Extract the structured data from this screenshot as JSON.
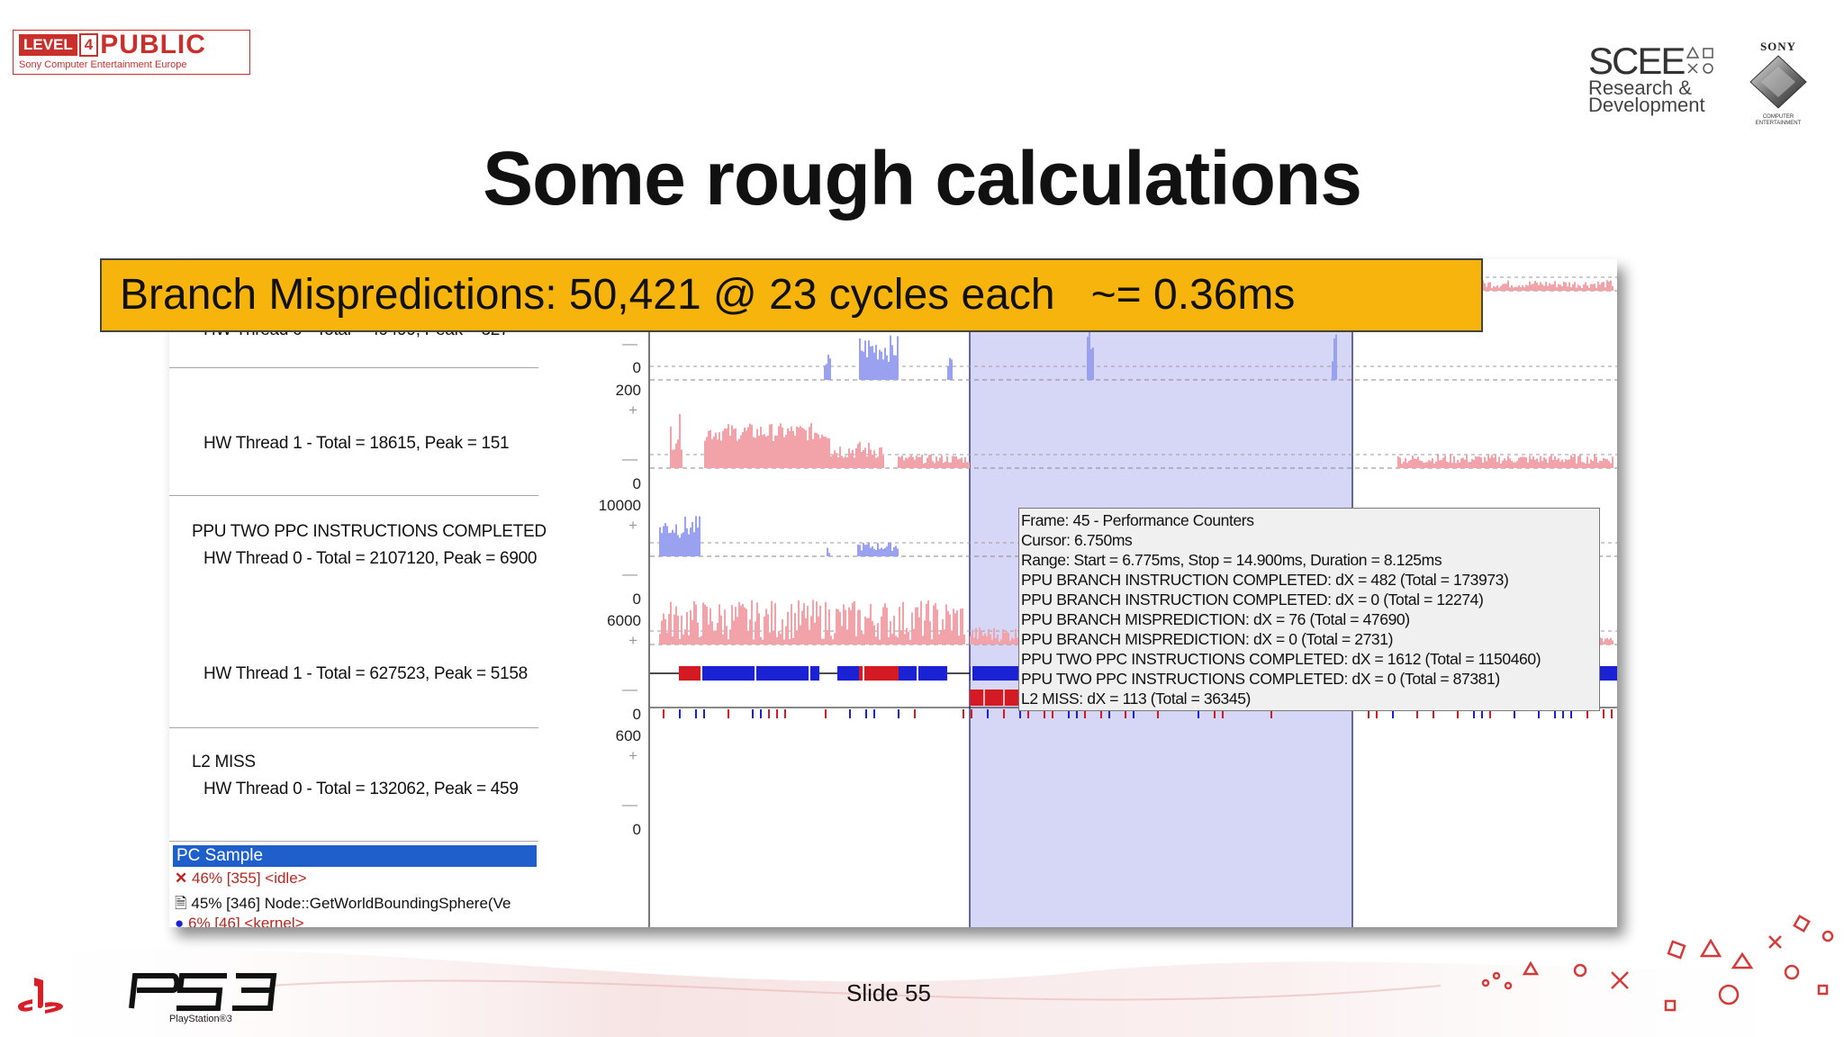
{
  "slide": {
    "title": "Some rough calculations",
    "slide_label": "Slide 55"
  },
  "logos": {
    "level4_box": "LEVEL",
    "level4_num": "4",
    "level4_public": "PUBLIC",
    "level4_sub": "Sony Computer Entertainment Europe",
    "scee_big": "SCEE",
    "scee_line1": "Research &",
    "scee_line2": "Development",
    "sony": "SONY",
    "sony_sub": "COMPUTER ENTERTAINMENT",
    "ps3_text": "PS3",
    "ps3_sub": "PlayStation®3"
  },
  "banner": {
    "text": "Branch Mispredictions: 50,421 @ 23 cycles each   ~= 0.36ms"
  },
  "profiler": {
    "left_labels": {
      "row0": "HW Thread 0 - Total = 49499, Peak = 327",
      "row1": "HW Thread 1 - Total = 18615, Peak = 151",
      "row2_title": "PPU TWO PPC INSTRUCTIONS COMPLETED",
      "row2": "HW Thread 0 - Total = 2107120, Peak = 6900",
      "row3": "HW Thread 1 - Total = 627523, Peak = 5158",
      "row4_title": "L2 MISS",
      "row4": "HW Thread 0 - Total = 132062, Peak = 459"
    },
    "axis": {
      "r0_zero": "0",
      "r1_max": "200",
      "r1_zero": "0",
      "r2_max": "10000",
      "r2_zero": "0",
      "r3_max": "6000",
      "r3_zero": "0",
      "r4_max": "600",
      "r4_zero": "0"
    },
    "pc_sample": {
      "header": "PC Sample",
      "row1": "46% [355] <idle>",
      "row2": "45% [346] Node::GetWorldBoundingSphere(Ve",
      "row3": "6% [46] <kernel>"
    },
    "tooltip": [
      "Frame: 45 - Performance Counters",
      "Cursor: 6.750ms",
      "Range: Start = 6.775ms, Stop = 14.900ms, Duration = 8.125ms",
      "PPU BRANCH INSTRUCTION COMPLETED: dX = 482 (Total = 173973)",
      "PPU BRANCH INSTRUCTION COMPLETED: dX = 0 (Total = 12274)",
      "PPU BRANCH MISPREDICTION: dX = 76 (Total = 47690)",
      "PPU BRANCH MISPREDICTION: dX = 0 (Total = 2731)",
      "PPU TWO PPC INSTRUCTIONS COMPLETED: dX = 1612 (Total = 1150460)",
      "PPU TWO PPC INSTRUCTIONS COMPLETED: dX = 0 (Total = 87381)",
      "L2 MISS: dX = 113 (Total = 36345)"
    ],
    "colors": {
      "selection": "#c8c8f4",
      "thread0": "#f2a3a9",
      "thread1": "#9aa2f0",
      "bar_blue": "#1a22d4",
      "bar_red": "#d41a22",
      "highlight": "#f6b40c"
    }
  }
}
